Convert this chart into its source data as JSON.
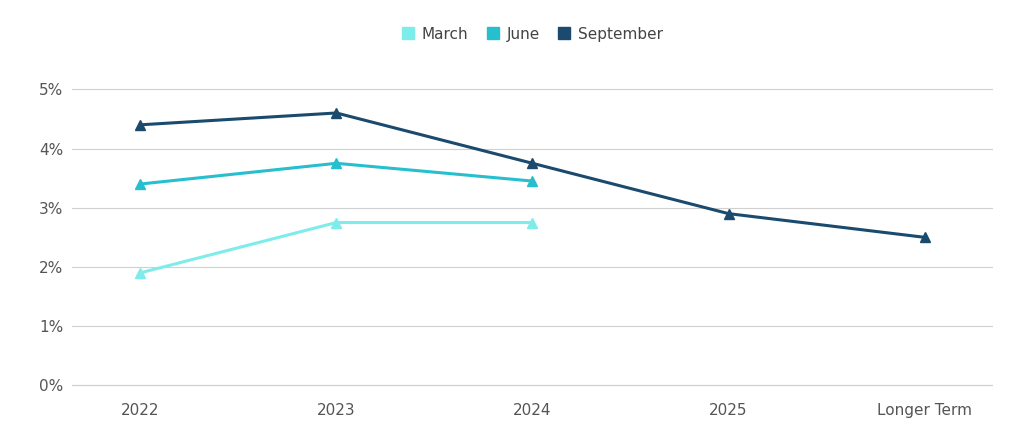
{
  "series": [
    {
      "label": "March",
      "color": "#7EECEA",
      "marker": "^",
      "x": [
        0,
        1,
        2
      ],
      "y": [
        1.9,
        2.75,
        2.75
      ]
    },
    {
      "label": "June",
      "color": "#27BFCE",
      "marker": "^",
      "x": [
        0,
        1,
        2
      ],
      "y": [
        3.4,
        3.75,
        3.45
      ]
    },
    {
      "label": "September",
      "color": "#1A4B6E",
      "marker": "^",
      "x": [
        0,
        1,
        2,
        3,
        4
      ],
      "y": [
        4.4,
        4.6,
        3.75,
        2.9,
        2.5
      ]
    }
  ],
  "legend_colors": [
    "#7EECEA",
    "#27BFCE",
    "#1A4B6E"
  ],
  "legend_labels": [
    "March",
    "June",
    "September"
  ],
  "xtick_labels": [
    "2022",
    "2023",
    "2024",
    "2025",
    "Longer Term"
  ],
  "yticks": [
    0,
    1,
    2,
    3,
    4,
    5
  ],
  "ytick_labels": [
    "0%",
    "1%",
    "2%",
    "3%",
    "4%",
    "5%"
  ],
  "ylim": [
    -0.15,
    5.6
  ],
  "background_color": "#ffffff",
  "grid_color": "#d0d0d0",
  "legend_fontsize": 11,
  "axis_fontsize": 11,
  "line_width": 2.2,
  "marker_size": 7
}
